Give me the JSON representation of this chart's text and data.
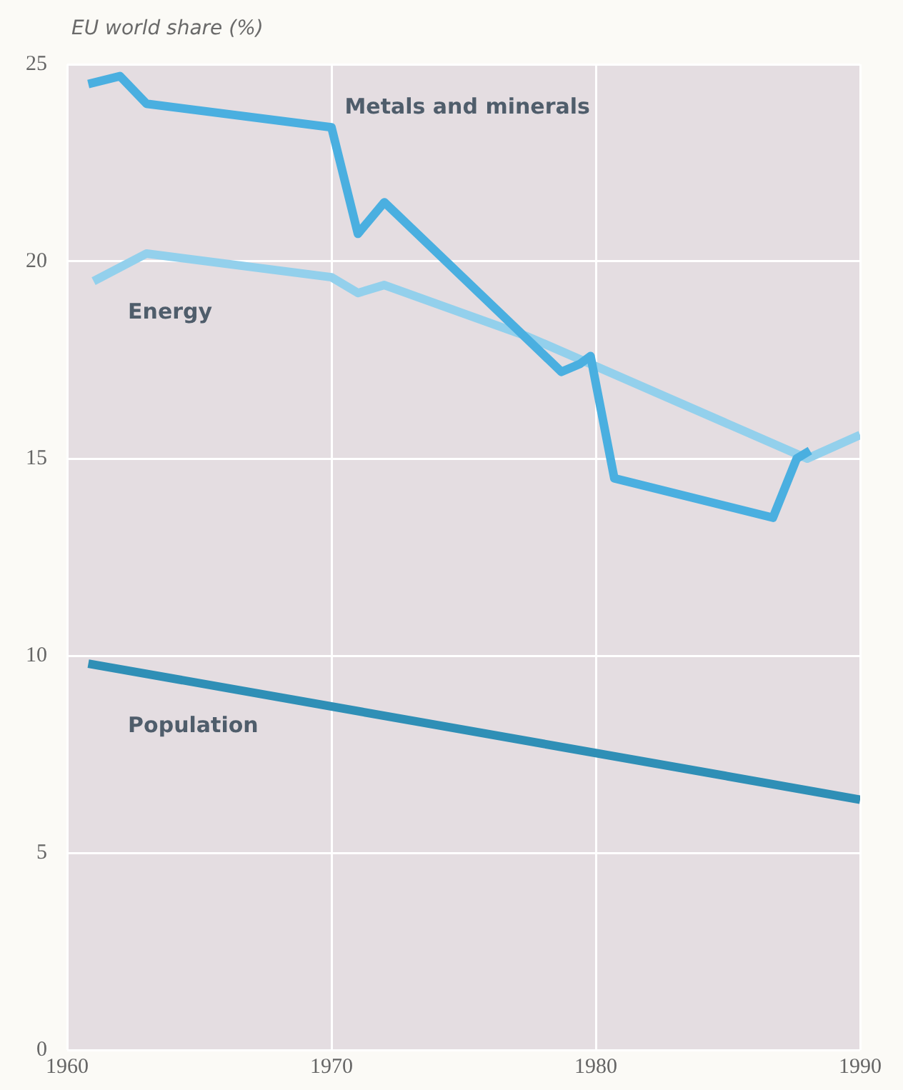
{
  "chart_data": {
    "type": "line",
    "ylabel": "EU world share (%)",
    "xlim": [
      1960,
      1990
    ],
    "xticks": [
      1960,
      1970,
      1980,
      1990
    ],
    "ylim": [
      0,
      25
    ],
    "yticks": [
      0,
      5,
      10,
      15,
      20,
      25
    ],
    "grid": true,
    "legend": false,
    "marker": "none",
    "line_style": "solid",
    "series": [
      {
        "name": "Metals and minerals",
        "color": "#4aafe0",
        "x": [
          1960.8,
          1962,
          1963,
          1970,
          1971,
          1972,
          1978.7,
          1979.4,
          1979.8,
          1980.7,
          1986.7,
          1987.6,
          1988.1
        ],
        "values": [
          24.5,
          24.7,
          24.0,
          23.4,
          20.7,
          21.5,
          17.2,
          17.4,
          17.6,
          14.5,
          13.5,
          15.0,
          15.2
        ]
      },
      {
        "name": "Energy",
        "color": "#93d0ec",
        "x": [
          1961,
          1963,
          1970,
          1971,
          1972,
          1977.4,
          1979.8,
          1988,
          1990
        ],
        "values": [
          19.5,
          20.2,
          19.6,
          19.2,
          19.4,
          18.1,
          17.4,
          15.0,
          15.6
        ]
      },
      {
        "name": "Population",
        "color": "#2f8fb6",
        "x": [
          1960.8,
          1990
        ],
        "values": [
          9.8,
          6.35
        ]
      }
    ]
  }
}
